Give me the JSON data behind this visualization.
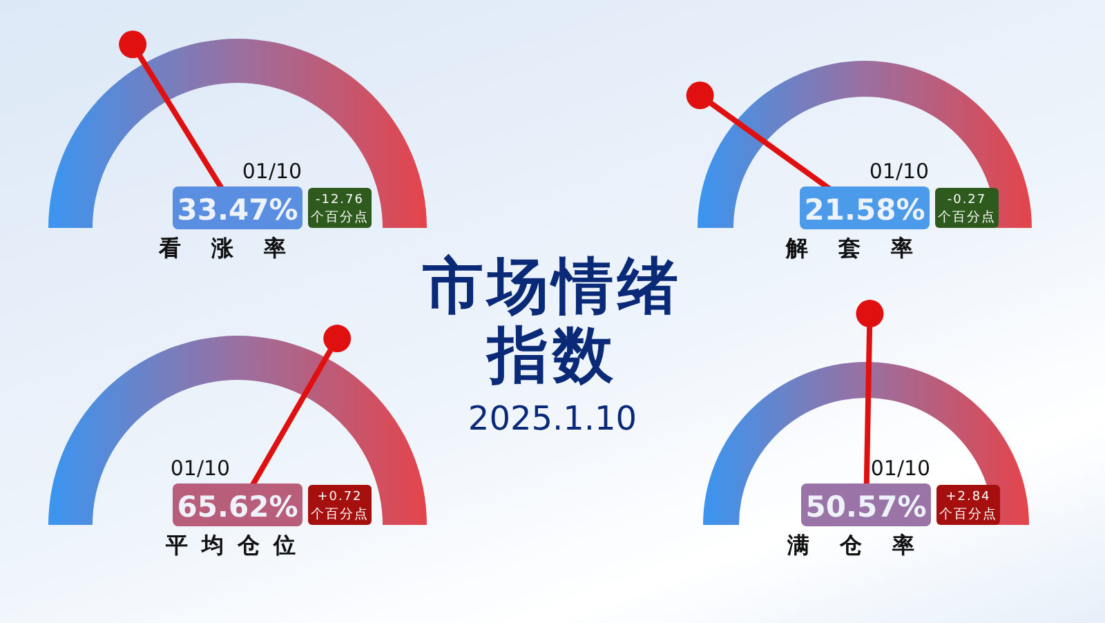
{
  "chart_data": [
    {
      "type": "other",
      "title": "看涨率",
      "values": [
        33.47
      ],
      "value_labels": [
        "33.47%"
      ],
      "annotations": [
        "01/10",
        "-12.76",
        "个百分点"
      ],
      "color": "#5a8ee0"
    },
    {
      "type": "other",
      "title": "解套率",
      "values": [
        21.58
      ],
      "value_labels": [
        "21.58%"
      ],
      "annotations": [
        "01/10",
        "-0.27",
        "个百分点"
      ],
      "color": "#4b9bea"
    },
    {
      "type": "other",
      "title": "市场情绪指数",
      "subtitle": "2025.1.10"
    },
    {
      "type": "other",
      "title": "平均仓位",
      "values": [
        65.62
      ],
      "value_labels": [
        "65.62%"
      ],
      "annotations": [
        "01/10",
        "+0.72",
        "个百分点"
      ],
      "color": "#b95e7a"
    },
    {
      "type": "other",
      "title": "满仓率",
      "values": [
        50.57
      ],
      "value_labels": [
        "50.57%"
      ],
      "annotations": [
        "01/10",
        "+2.84",
        "个百分点"
      ],
      "color": "#9a74a6"
    }
  ]
}
